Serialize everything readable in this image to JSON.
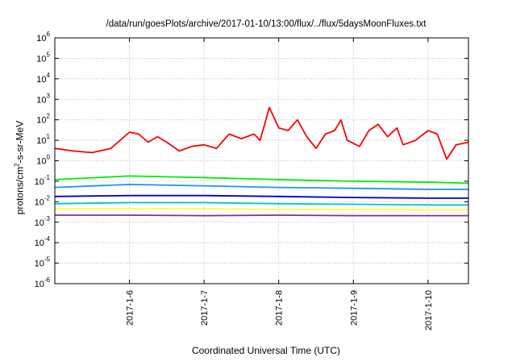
{
  "chart_data": {
    "type": "line",
    "title": "/data/run/goesPlots/archive/2017-01-10/13:00/flux/../flux/5daysMoonFluxes.txt",
    "xlabel": "Coordinated Universal Time (UTC)",
    "ylabel_main": "protons/cm",
    "ylabel_sup": "2",
    "ylabel_rest": "-s-sr-MeV",
    "x_range": [
      "2017-01-05 00:00",
      "2017-01-10 13:00"
    ],
    "x_ticks": [
      "2017-1-6",
      "2017-1-7",
      "2017-1-8",
      "2017-1-9",
      "2017-1-10"
    ],
    "y_scale": "log",
    "ylim": [
      1e-06,
      1000000.0
    ],
    "y_ticks": [
      {
        "base": "10",
        "exp": "-6"
      },
      {
        "base": "10",
        "exp": "-5"
      },
      {
        "base": "10",
        "exp": "-4"
      },
      {
        "base": "10",
        "exp": "-3"
      },
      {
        "base": "10",
        "exp": "-2"
      },
      {
        "base": "10",
        "exp": "-1"
      },
      {
        "base": "10",
        "exp": "0"
      },
      {
        "base": "10",
        "exp": "1"
      },
      {
        "base": "10",
        "exp": "2"
      },
      {
        "base": "10",
        "exp": "3"
      },
      {
        "base": "10",
        "exp": "4"
      },
      {
        "base": "10",
        "exp": "5"
      },
      {
        "base": "10",
        "exp": "6"
      }
    ],
    "grid": true,
    "legend": "none",
    "series": [
      {
        "color": "#ff0000",
        "points": [
          [
            "2017-01-05 00:00",
            4
          ],
          [
            "2017-01-05 06:00",
            3
          ],
          [
            "2017-01-05 12:00",
            2.5
          ],
          [
            "2017-01-05 18:00",
            4
          ],
          [
            "2017-01-05 21:00",
            10
          ],
          [
            "2017-01-06 00:00",
            25
          ],
          [
            "2017-01-06 03:00",
            20
          ],
          [
            "2017-01-06 06:00",
            8
          ],
          [
            "2017-01-06 09:00",
            15
          ],
          [
            "2017-01-06 12:00",
            8
          ],
          [
            "2017-01-06 16:00",
            3
          ],
          [
            "2017-01-06 20:00",
            5
          ],
          [
            "2017-01-07 00:00",
            6
          ],
          [
            "2017-01-07 04:00",
            4
          ],
          [
            "2017-01-07 08:00",
            20
          ],
          [
            "2017-01-07 12:00",
            12
          ],
          [
            "2017-01-07 16:00",
            20
          ],
          [
            "2017-01-07 18:00",
            10
          ],
          [
            "2017-01-07 21:00",
            400
          ],
          [
            "2017-01-08 00:00",
            40
          ],
          [
            "2017-01-08 03:00",
            30
          ],
          [
            "2017-01-08 06:00",
            100
          ],
          [
            "2017-01-08 09:00",
            15
          ],
          [
            "2017-01-08 12:00",
            4
          ],
          [
            "2017-01-08 15:00",
            20
          ],
          [
            "2017-01-08 18:00",
            30
          ],
          [
            "2017-01-08 20:00",
            100
          ],
          [
            "2017-01-08 22:00",
            10
          ],
          [
            "2017-01-09 02:00",
            5
          ],
          [
            "2017-01-09 05:00",
            30
          ],
          [
            "2017-01-09 08:00",
            60
          ],
          [
            "2017-01-09 11:00",
            15
          ],
          [
            "2017-01-09 14:00",
            40
          ],
          [
            "2017-01-09 16:00",
            6
          ],
          [
            "2017-01-09 20:00",
            10
          ],
          [
            "2017-01-10 00:00",
            30
          ],
          [
            "2017-01-10 03:00",
            20
          ],
          [
            "2017-01-10 06:00",
            1.2
          ],
          [
            "2017-01-10 09:00",
            6
          ],
          [
            "2017-01-10 13:00",
            8
          ]
        ]
      },
      {
        "color": "#00ee00",
        "points": [
          [
            "2017-01-05 00:00",
            0.12
          ],
          [
            "2017-01-06 00:00",
            0.18
          ],
          [
            "2017-01-07 00:00",
            0.15
          ],
          [
            "2017-01-08 00:00",
            0.12
          ],
          [
            "2017-01-09 00:00",
            0.1
          ],
          [
            "2017-01-10 00:00",
            0.09
          ],
          [
            "2017-01-10 13:00",
            0.08
          ]
        ]
      },
      {
        "color": "#1e90ff",
        "points": [
          [
            "2017-01-05 00:00",
            0.05
          ],
          [
            "2017-01-06 00:00",
            0.07
          ],
          [
            "2017-01-07 00:00",
            0.06
          ],
          [
            "2017-01-08 00:00",
            0.05
          ],
          [
            "2017-01-09 00:00",
            0.045
          ],
          [
            "2017-01-10 00:00",
            0.04
          ],
          [
            "2017-01-10 13:00",
            0.04
          ]
        ]
      },
      {
        "color": "#0000cd",
        "points": [
          [
            "2017-01-05 00:00",
            0.018
          ],
          [
            "2017-01-06 00:00",
            0.02
          ],
          [
            "2017-01-07 00:00",
            0.02
          ],
          [
            "2017-01-08 00:00",
            0.018
          ],
          [
            "2017-01-09 00:00",
            0.016
          ],
          [
            "2017-01-10 00:00",
            0.015
          ],
          [
            "2017-01-10 13:00",
            0.015
          ]
        ]
      },
      {
        "color": "#00c8c8",
        "points": [
          [
            "2017-01-05 00:00",
            0.008
          ],
          [
            "2017-01-06 00:00",
            0.009
          ],
          [
            "2017-01-07 00:00",
            0.009
          ],
          [
            "2017-01-08 00:00",
            0.008
          ],
          [
            "2017-01-09 00:00",
            0.0075
          ],
          [
            "2017-01-10 00:00",
            0.007
          ],
          [
            "2017-01-10 13:00",
            0.007
          ]
        ]
      },
      {
        "color": "#ffff33",
        "points": [
          [
            "2017-01-05 00:00",
            0.0045
          ],
          [
            "2017-01-06 00:00",
            0.0045
          ],
          [
            "2017-01-07 00:00",
            0.0045
          ],
          [
            "2017-01-08 00:00",
            0.0042
          ],
          [
            "2017-01-09 00:00",
            0.0042
          ],
          [
            "2017-01-10 00:00",
            0.004
          ],
          [
            "2017-01-10 13:00",
            0.004
          ]
        ]
      },
      {
        "color": "#8b2a8b",
        "points": [
          [
            "2017-01-05 00:00",
            0.0022
          ],
          [
            "2017-01-06 00:00",
            0.0022
          ],
          [
            "2017-01-07 00:00",
            0.0021
          ],
          [
            "2017-01-08 00:00",
            0.0022
          ],
          [
            "2017-01-09 00:00",
            0.0021
          ],
          [
            "2017-01-10 00:00",
            0.0021
          ],
          [
            "2017-01-10 13:00",
            0.0021
          ]
        ]
      }
    ]
  }
}
